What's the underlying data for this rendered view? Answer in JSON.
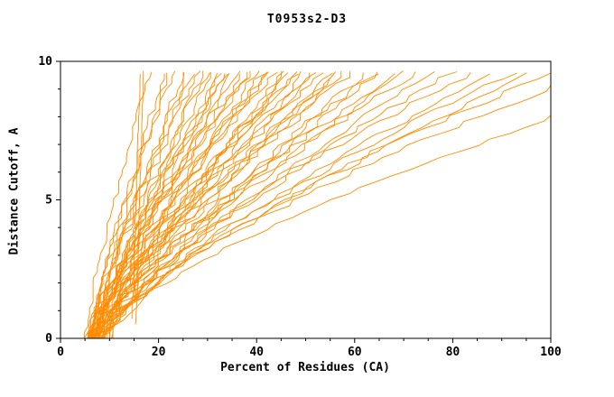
{
  "chart_data": {
    "type": "line",
    "title": "T0953s2-D3",
    "xlabel": "Percent of Residues (CA)",
    "ylabel": "Distance Cutoff, A",
    "xlim": [
      0,
      100
    ],
    "ylim": [
      0,
      10
    ],
    "x_major_ticks": [
      0,
      20,
      40,
      60,
      80,
      100
    ],
    "x_minor_step": 5,
    "y_major_ticks": [
      0,
      5,
      10
    ],
    "y_minor_step": 1,
    "grid": false,
    "legend": "none",
    "line_color": "#ff8c00",
    "axis_color": "#000000",
    "background_color": "#ffffff",
    "y_top_of_curves": 9.6,
    "curve_params_format": [
      "x_start_percent_at_y0",
      "x_percent_at_top",
      "shape_exponent",
      "jitter_percent",
      "seed",
      "y_start"
    ],
    "curves": [
      [
        5.0,
        18,
        1.2,
        0.6,
        1,
        0
      ],
      [
        5.5,
        21,
        1.1,
        0.7,
        2,
        0
      ],
      [
        6.0,
        23,
        1.3,
        0.8,
        3,
        0
      ],
      [
        5.2,
        25,
        1.0,
        0.7,
        4,
        0
      ],
      [
        6.5,
        26,
        1.2,
        0.9,
        5,
        0
      ],
      [
        5.8,
        28,
        1.15,
        0.8,
        6,
        0
      ],
      [
        6.2,
        30,
        1.25,
        0.9,
        7,
        0
      ],
      [
        5.4,
        31,
        1.05,
        0.8,
        8,
        0
      ],
      [
        7.0,
        33,
        1.2,
        1.0,
        9,
        0
      ],
      [
        6.8,
        34,
        1.3,
        0.9,
        10,
        0
      ],
      [
        5.6,
        35,
        1.1,
        0.8,
        11,
        0
      ],
      [
        7.2,
        36,
        1.2,
        1.0,
        12,
        0
      ],
      [
        6.4,
        38,
        1.15,
        0.9,
        13,
        0
      ],
      [
        5.9,
        39,
        1.25,
        0.8,
        14,
        0
      ],
      [
        7.5,
        40,
        1.1,
        1.0,
        15,
        0
      ],
      [
        14.6,
        16.2,
        1.0,
        0.15,
        16,
        0.7
      ],
      [
        15.4,
        16.8,
        1.0,
        0.15,
        17,
        0.5
      ],
      [
        6.0,
        42,
        1.2,
        1.0,
        18,
        0
      ],
      [
        6.6,
        44,
        1.3,
        1.1,
        19,
        0
      ],
      [
        7.0,
        45,
        1.1,
        1.0,
        20,
        0
      ],
      [
        5.7,
        47,
        1.2,
        1.1,
        21,
        0
      ],
      [
        7.4,
        48,
        1.25,
        1.0,
        22,
        0
      ],
      [
        6.1,
        50,
        1.15,
        1.1,
        23,
        0
      ],
      [
        7.8,
        52,
        1.3,
        1.2,
        24,
        0
      ],
      [
        6.3,
        53,
        1.2,
        1.0,
        25,
        0
      ],
      [
        8.0,
        55,
        1.1,
        1.2,
        26,
        0
      ],
      [
        6.7,
        56,
        1.25,
        1.1,
        27,
        0
      ],
      [
        7.1,
        58,
        1.2,
        1.0,
        28,
        0
      ],
      [
        8.4,
        60,
        1.35,
        1.2,
        29,
        0
      ],
      [
        6.9,
        62,
        1.15,
        1.1,
        30,
        0
      ],
      [
        7.6,
        64,
        1.25,
        1.2,
        31,
        0
      ],
      [
        8.8,
        65,
        1.2,
        1.1,
        32,
        0
      ],
      [
        7.3,
        68,
        1.3,
        1.2,
        33,
        0
      ],
      [
        8.2,
        70,
        1.2,
        1.1,
        34,
        0
      ],
      [
        7.7,
        73,
        1.35,
        1.2,
        35,
        0
      ],
      [
        8.6,
        76,
        1.25,
        1.1,
        36,
        0
      ],
      [
        7.9,
        80,
        1.3,
        1.2,
        37,
        0
      ],
      [
        9.0,
        84,
        1.4,
        1.2,
        38,
        0
      ],
      [
        8.1,
        88,
        1.3,
        1.1,
        39,
        0
      ],
      [
        9.2,
        92,
        1.35,
        1.2,
        40,
        0
      ],
      [
        8.5,
        96,
        1.3,
        1.1,
        41,
        0
      ],
      [
        9.4,
        100,
        1.4,
        1.2,
        42,
        0
      ],
      [
        9.6,
        108,
        1.45,
        1.1,
        43,
        0
      ],
      [
        10.0,
        130,
        1.5,
        1.0,
        44,
        0
      ],
      [
        5.1,
        22,
        1.0,
        0.9,
        45,
        0
      ],
      [
        5.3,
        27,
        1.2,
        1.0,
        46,
        0
      ],
      [
        6.0,
        29,
        1.05,
        0.9,
        47,
        0
      ],
      [
        6.6,
        32,
        1.2,
        1.0,
        48,
        0
      ],
      [
        5.5,
        34,
        1.1,
        0.9,
        49,
        0
      ],
      [
        7.3,
        37,
        1.25,
        1.0,
        50,
        0
      ],
      [
        6.2,
        41,
        1.15,
        0.9,
        51,
        0
      ],
      [
        6.8,
        43,
        1.2,
        1.0,
        52,
        0
      ],
      [
        7.5,
        46,
        1.1,
        1.0,
        53,
        0
      ],
      [
        6.4,
        49,
        1.25,
        0.9,
        54,
        0
      ],
      [
        7.0,
        51,
        1.2,
        1.0,
        55,
        0
      ],
      [
        8.3,
        57,
        1.3,
        1.1,
        56,
        0
      ]
    ]
  }
}
